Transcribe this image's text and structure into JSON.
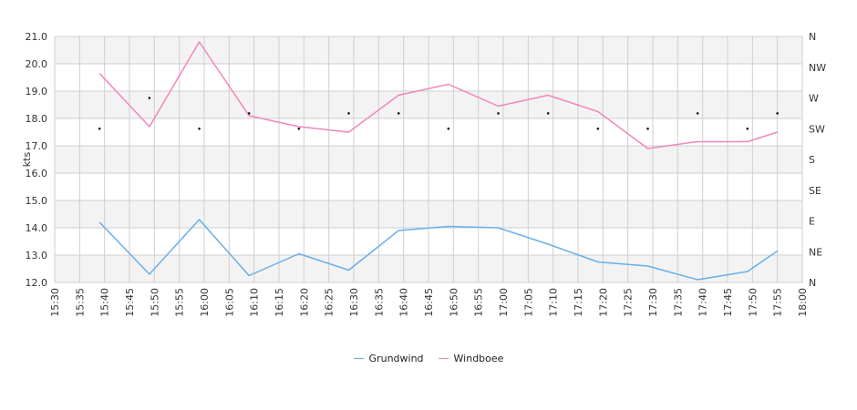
{
  "chart_data": {
    "type": "line",
    "ylabel": "kts",
    "ylim": [
      12.0,
      21.0
    ],
    "y_ticks": [
      "12.0",
      "13.0",
      "14.0",
      "15.0",
      "16.0",
      "17.0",
      "18.0",
      "19.0",
      "20.0",
      "21.0"
    ],
    "x_ticks": [
      "15:30",
      "15:35",
      "15:40",
      "15:45",
      "15:50",
      "15:55",
      "16:00",
      "16:05",
      "16:10",
      "16:15",
      "16:20",
      "16:25",
      "16:30",
      "16:35",
      "16:40",
      "16:45",
      "16:50",
      "16:55",
      "17:00",
      "17:05",
      "17:10",
      "17:15",
      "17:20",
      "17:25",
      "17:30",
      "17:35",
      "17:40",
      "17:45",
      "17:50",
      "17:55",
      "18:00"
    ],
    "x_range": [
      "15:30",
      "18:00"
    ],
    "right_axis_ticks": [
      "N",
      "NE",
      "E",
      "SE",
      "S",
      "SW",
      "W",
      "NW",
      "N"
    ],
    "right_axis_range": [
      0,
      360
    ],
    "x": [
      "15:39",
      "15:49",
      "15:59",
      "16:09",
      "16:19",
      "16:29",
      "16:39",
      "16:49",
      "16:59",
      "17:09",
      "17:19",
      "17:29",
      "17:39",
      "17:49",
      "17:55"
    ],
    "series": [
      {
        "name": "Grundwind",
        "color": "#6aaee8",
        "values": [
          14.2,
          12.3,
          14.3,
          12.25,
          13.05,
          12.45,
          13.9,
          14.05,
          14.0,
          13.4,
          12.75,
          12.6,
          12.1,
          12.4,
          13.15
        ]
      },
      {
        "name": "Windboee",
        "color": "#f087bd",
        "values": [
          19.65,
          17.7,
          20.8,
          18.1,
          17.7,
          17.5,
          18.85,
          19.25,
          18.45,
          18.85,
          18.25,
          16.9,
          17.15,
          17.15,
          17.5
        ]
      }
    ],
    "direction_degrees": [
      225,
      270,
      225,
      247.5,
      225,
      247.5,
      247.5,
      225,
      247.5,
      247.5,
      225,
      225,
      247.5,
      225,
      247.5
    ],
    "grid": true,
    "legend_position": "bottom"
  }
}
